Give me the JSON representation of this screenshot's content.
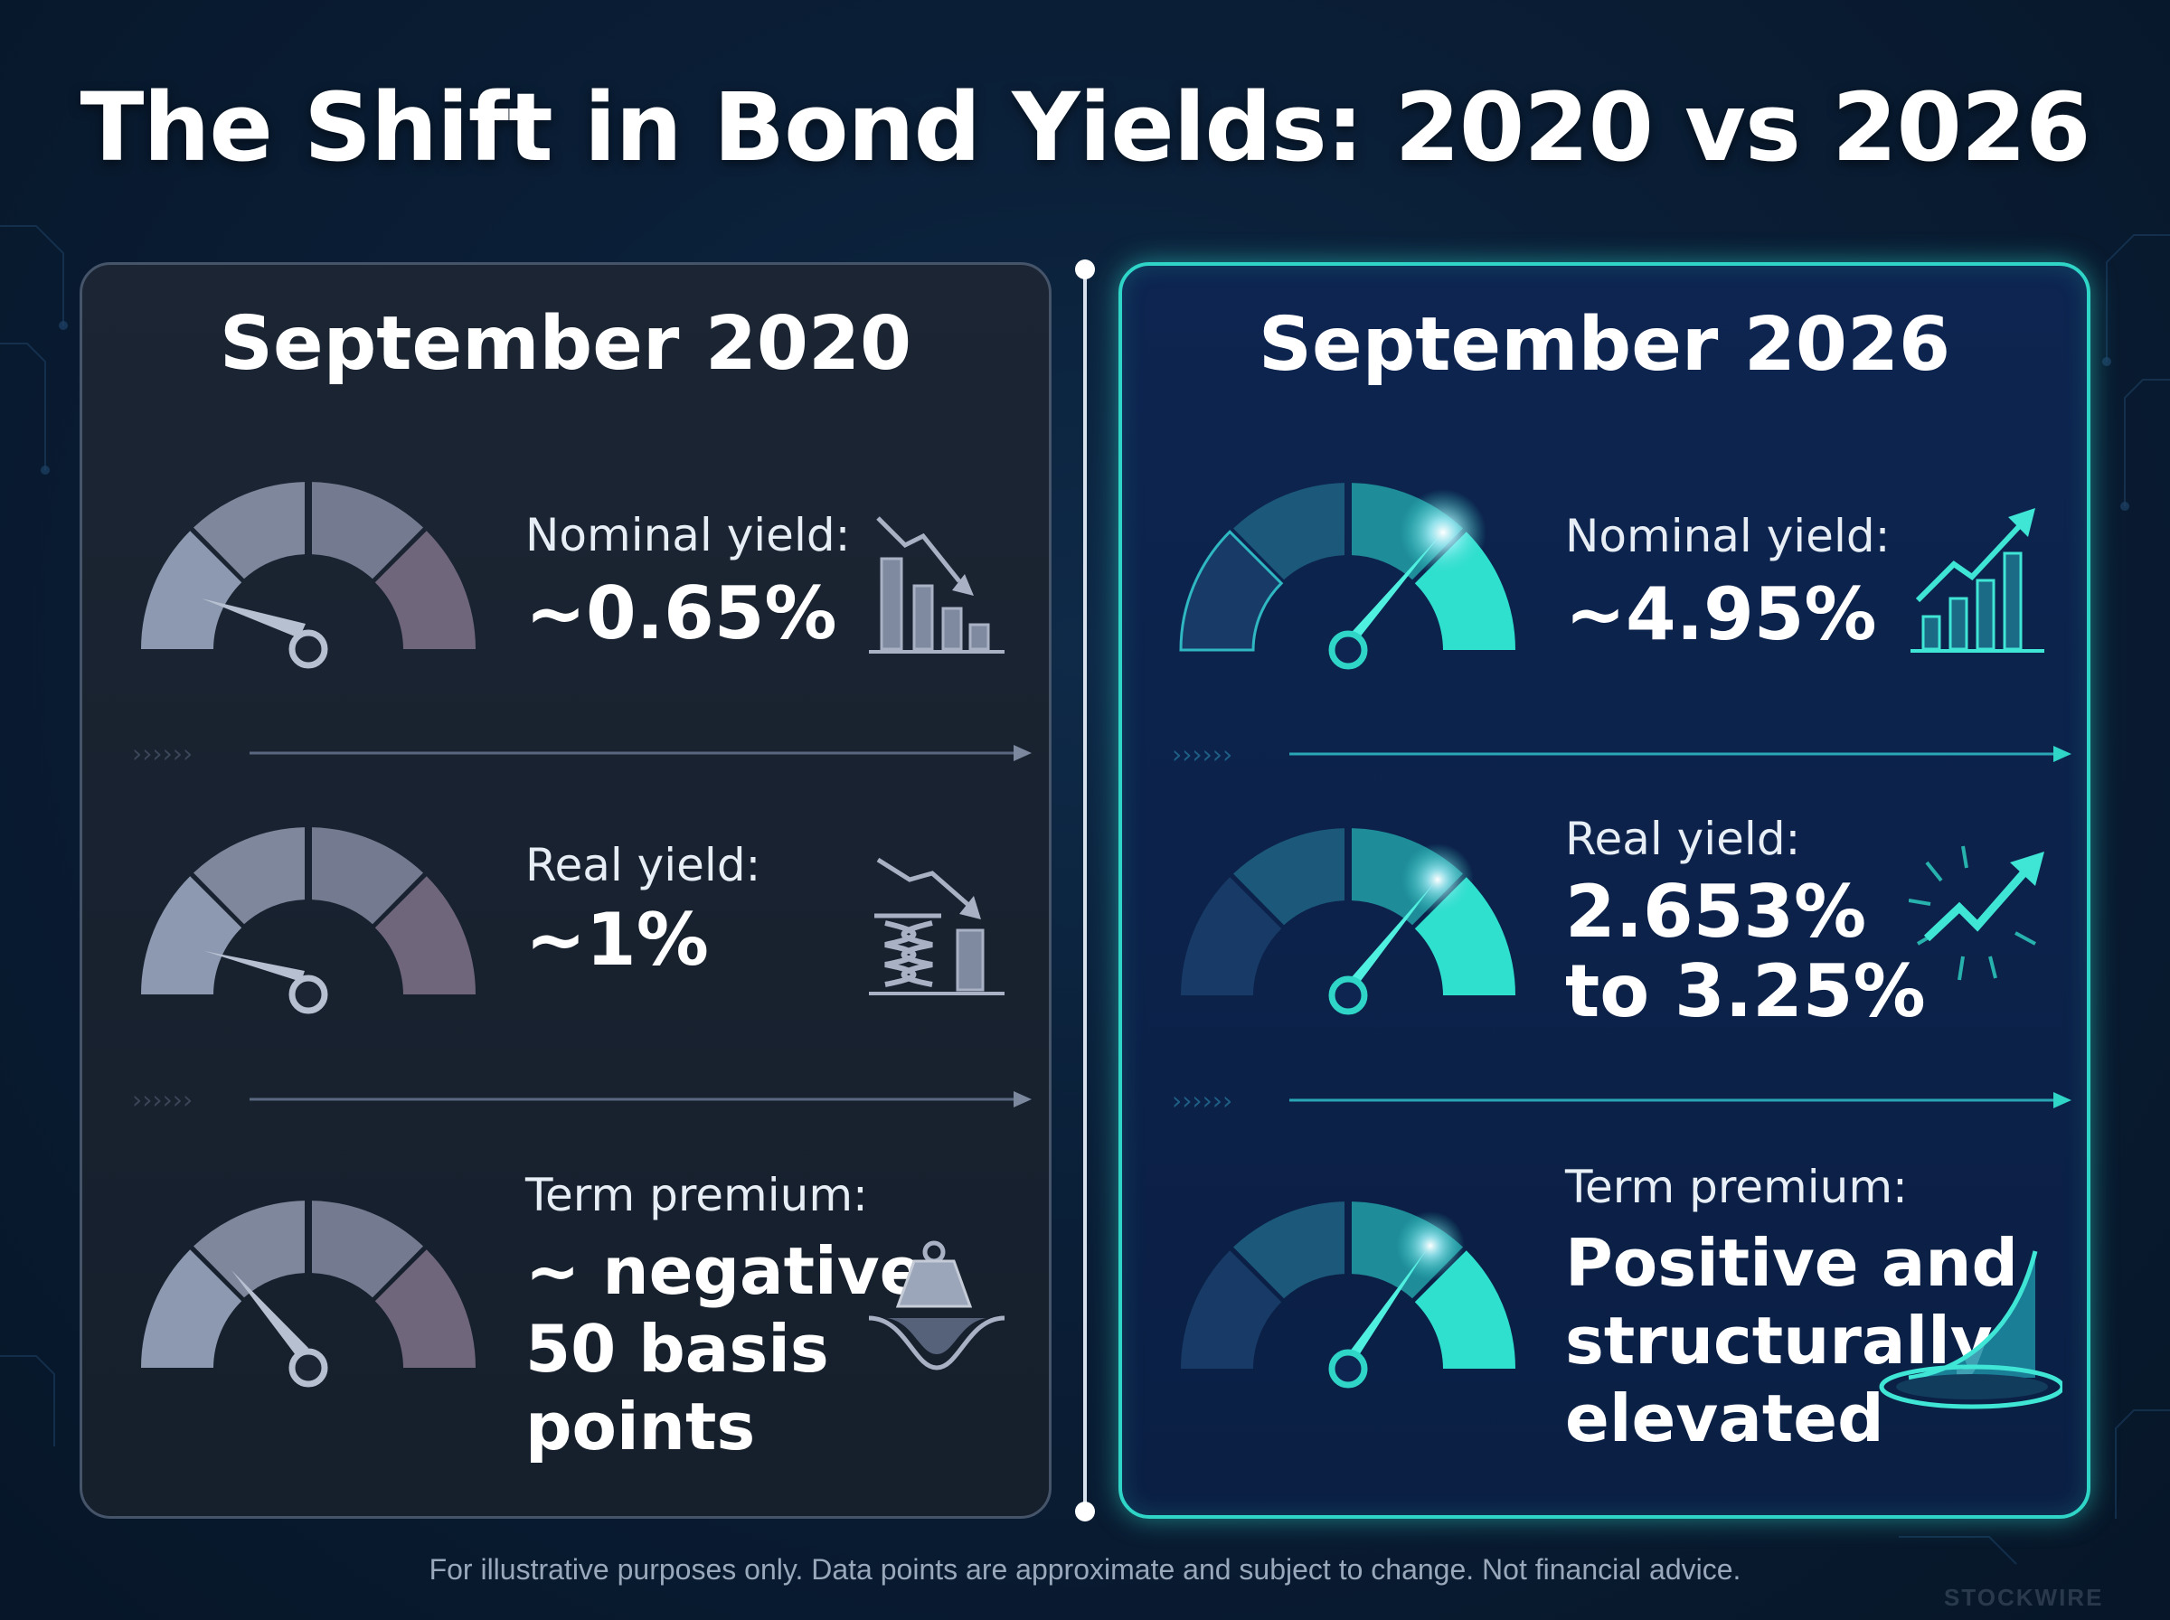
{
  "title": "The Shift in Bond Yields: 2020 vs 2026",
  "colors": {
    "background": "#0a1e36",
    "left_panel": "#1b2533",
    "right_panel": "#0d2550",
    "accent_teal": "#2fd6c8",
    "gauge_muted": "#8e9ab0",
    "gauge_mauve": "#756a7e"
  },
  "left": {
    "heading": "September 2020",
    "metrics": [
      {
        "label": "Nominal yield:",
        "value": "~0.65%",
        "icon": "bar-chart-down-icon",
        "gauge_level": 0.1
      },
      {
        "label": "Real yield:",
        "value": "~1%",
        "icon": "compressed-spring-down-icon",
        "gauge_level": 0.12
      },
      {
        "label": "Term premium:",
        "value_lines": [
          "~ negative",
          "50 basis",
          "points"
        ],
        "icon": "weight-dip-icon",
        "gauge_level": 0.2
      }
    ]
  },
  "right": {
    "heading": "September 2026",
    "metrics": [
      {
        "label": "Nominal yield:",
        "value": "~4.95%",
        "icon": "bar-chart-up-icon",
        "gauge_level": 0.8
      },
      {
        "label": "Real yield:",
        "value_lines": [
          "2.653%",
          "to 3.25%"
        ],
        "icon": "burst-arrow-up-icon",
        "gauge_level": 0.78
      },
      {
        "label": "Term premium:",
        "value_lines": [
          "Positive and",
          "structurally",
          "elevated"
        ],
        "icon": "rising-curve-pedestal-icon",
        "gauge_level": 0.76
      }
    ]
  },
  "footnote": "For illustrative purposes only. Data points are approximate and subject to change. Not financial advice.",
  "watermark": "STOCKWIRE"
}
